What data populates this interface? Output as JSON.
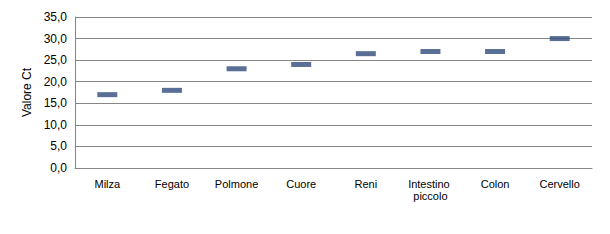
{
  "chart_data": {
    "type": "scatter",
    "y_label": "Valore Ct",
    "categories": [
      "Milza",
      "Fegato",
      "Polmone",
      "Cuore",
      "Reni",
      "Intestino piccolo",
      "Colon",
      "Cervello"
    ],
    "values": [
      17.0,
      18.0,
      23.0,
      24.0,
      26.5,
      27.0,
      27.0,
      30.0
    ],
    "color": "#2f4b7c",
    "marker": "dash",
    "ylim": [
      0,
      35
    ],
    "yticks": [
      {
        "value": 0,
        "label": "0,0"
      },
      {
        "value": 5,
        "label": "5,0"
      },
      {
        "value": 10,
        "label": "10,0"
      },
      {
        "value": 15,
        "label": "15,0"
      },
      {
        "value": 20,
        "label": "20,0"
      },
      {
        "value": 25,
        "label": "25,0"
      },
      {
        "value": 30,
        "label": "30,0"
      },
      {
        "value": 35,
        "label": "35,0"
      }
    ],
    "grid": true
  }
}
